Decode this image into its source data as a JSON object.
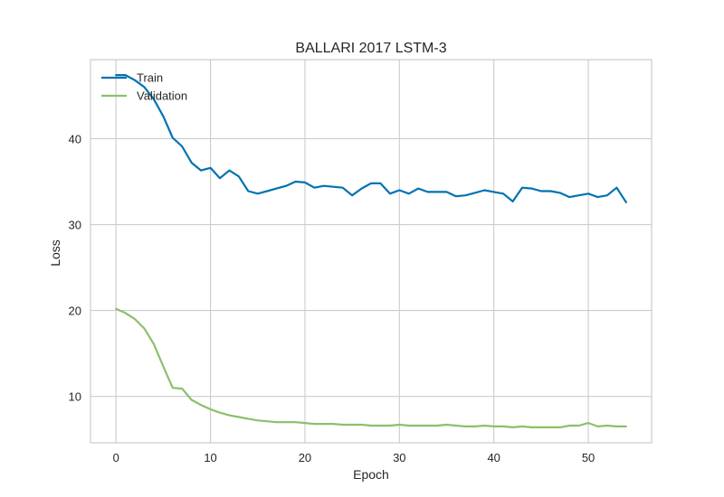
{
  "chart_data": {
    "type": "line",
    "title": "BALLARI 2017 LSTM-3",
    "xlabel": "Epoch",
    "ylabel": "Loss",
    "xlim": [
      -2.7,
      56.7
    ],
    "ylim": [
      4.6,
      49.2
    ],
    "xticks": [
      0,
      10,
      20,
      30,
      40,
      50
    ],
    "yticks": [
      10,
      20,
      30,
      40
    ],
    "grid": true,
    "legend_position": "top-left",
    "series": [
      {
        "name": "Train",
        "color": "#0072b2",
        "x": [
          0,
          1,
          2,
          3,
          4,
          5,
          6,
          7,
          8,
          9,
          10,
          11,
          12,
          13,
          14,
          15,
          16,
          17,
          18,
          19,
          20,
          21,
          22,
          23,
          24,
          25,
          26,
          27,
          28,
          29,
          30,
          31,
          32,
          33,
          34,
          35,
          36,
          37,
          38,
          39,
          40,
          41,
          42,
          43,
          44,
          45,
          46,
          47,
          48,
          49,
          50,
          51,
          52,
          53,
          54
        ],
        "values": [
          47.4,
          47.4,
          46.8,
          46.0,
          44.6,
          42.6,
          40.1,
          39.1,
          37.2,
          36.3,
          36.6,
          35.4,
          36.3,
          35.6,
          33.9,
          33.6,
          33.9,
          34.2,
          34.5,
          35.0,
          34.9,
          34.3,
          34.5,
          34.4,
          34.3,
          33.4,
          34.2,
          34.8,
          34.8,
          33.6,
          34.0,
          33.6,
          34.2,
          33.8,
          33.8,
          33.8,
          33.3,
          33.4,
          33.7,
          34.0,
          33.8,
          33.6,
          32.7,
          34.3,
          34.2,
          33.9,
          33.9,
          33.7,
          33.2,
          33.4,
          33.6,
          33.2,
          33.4,
          34.3,
          32.6
        ]
      },
      {
        "name": "Validation",
        "color": "#8bc06b",
        "x": [
          0,
          1,
          2,
          3,
          4,
          5,
          6,
          7,
          8,
          9,
          10,
          11,
          12,
          13,
          14,
          15,
          16,
          17,
          18,
          19,
          20,
          21,
          22,
          23,
          24,
          25,
          26,
          27,
          28,
          29,
          30,
          31,
          32,
          33,
          34,
          35,
          36,
          37,
          38,
          39,
          40,
          41,
          42,
          43,
          44,
          45,
          46,
          47,
          48,
          49,
          50,
          51,
          52,
          53,
          54
        ],
        "values": [
          20.2,
          19.7,
          19.0,
          17.9,
          16.1,
          13.5,
          11.0,
          10.9,
          9.6,
          9.0,
          8.5,
          8.1,
          7.8,
          7.6,
          7.4,
          7.2,
          7.1,
          7.0,
          7.0,
          7.0,
          6.9,
          6.8,
          6.8,
          6.8,
          6.7,
          6.7,
          6.7,
          6.6,
          6.6,
          6.6,
          6.7,
          6.6,
          6.6,
          6.6,
          6.6,
          6.7,
          6.6,
          6.5,
          6.5,
          6.6,
          6.5,
          6.5,
          6.4,
          6.5,
          6.4,
          6.4,
          6.4,
          6.4,
          6.6,
          6.6,
          6.9,
          6.5,
          6.6,
          6.5,
          6.5
        ]
      }
    ]
  }
}
